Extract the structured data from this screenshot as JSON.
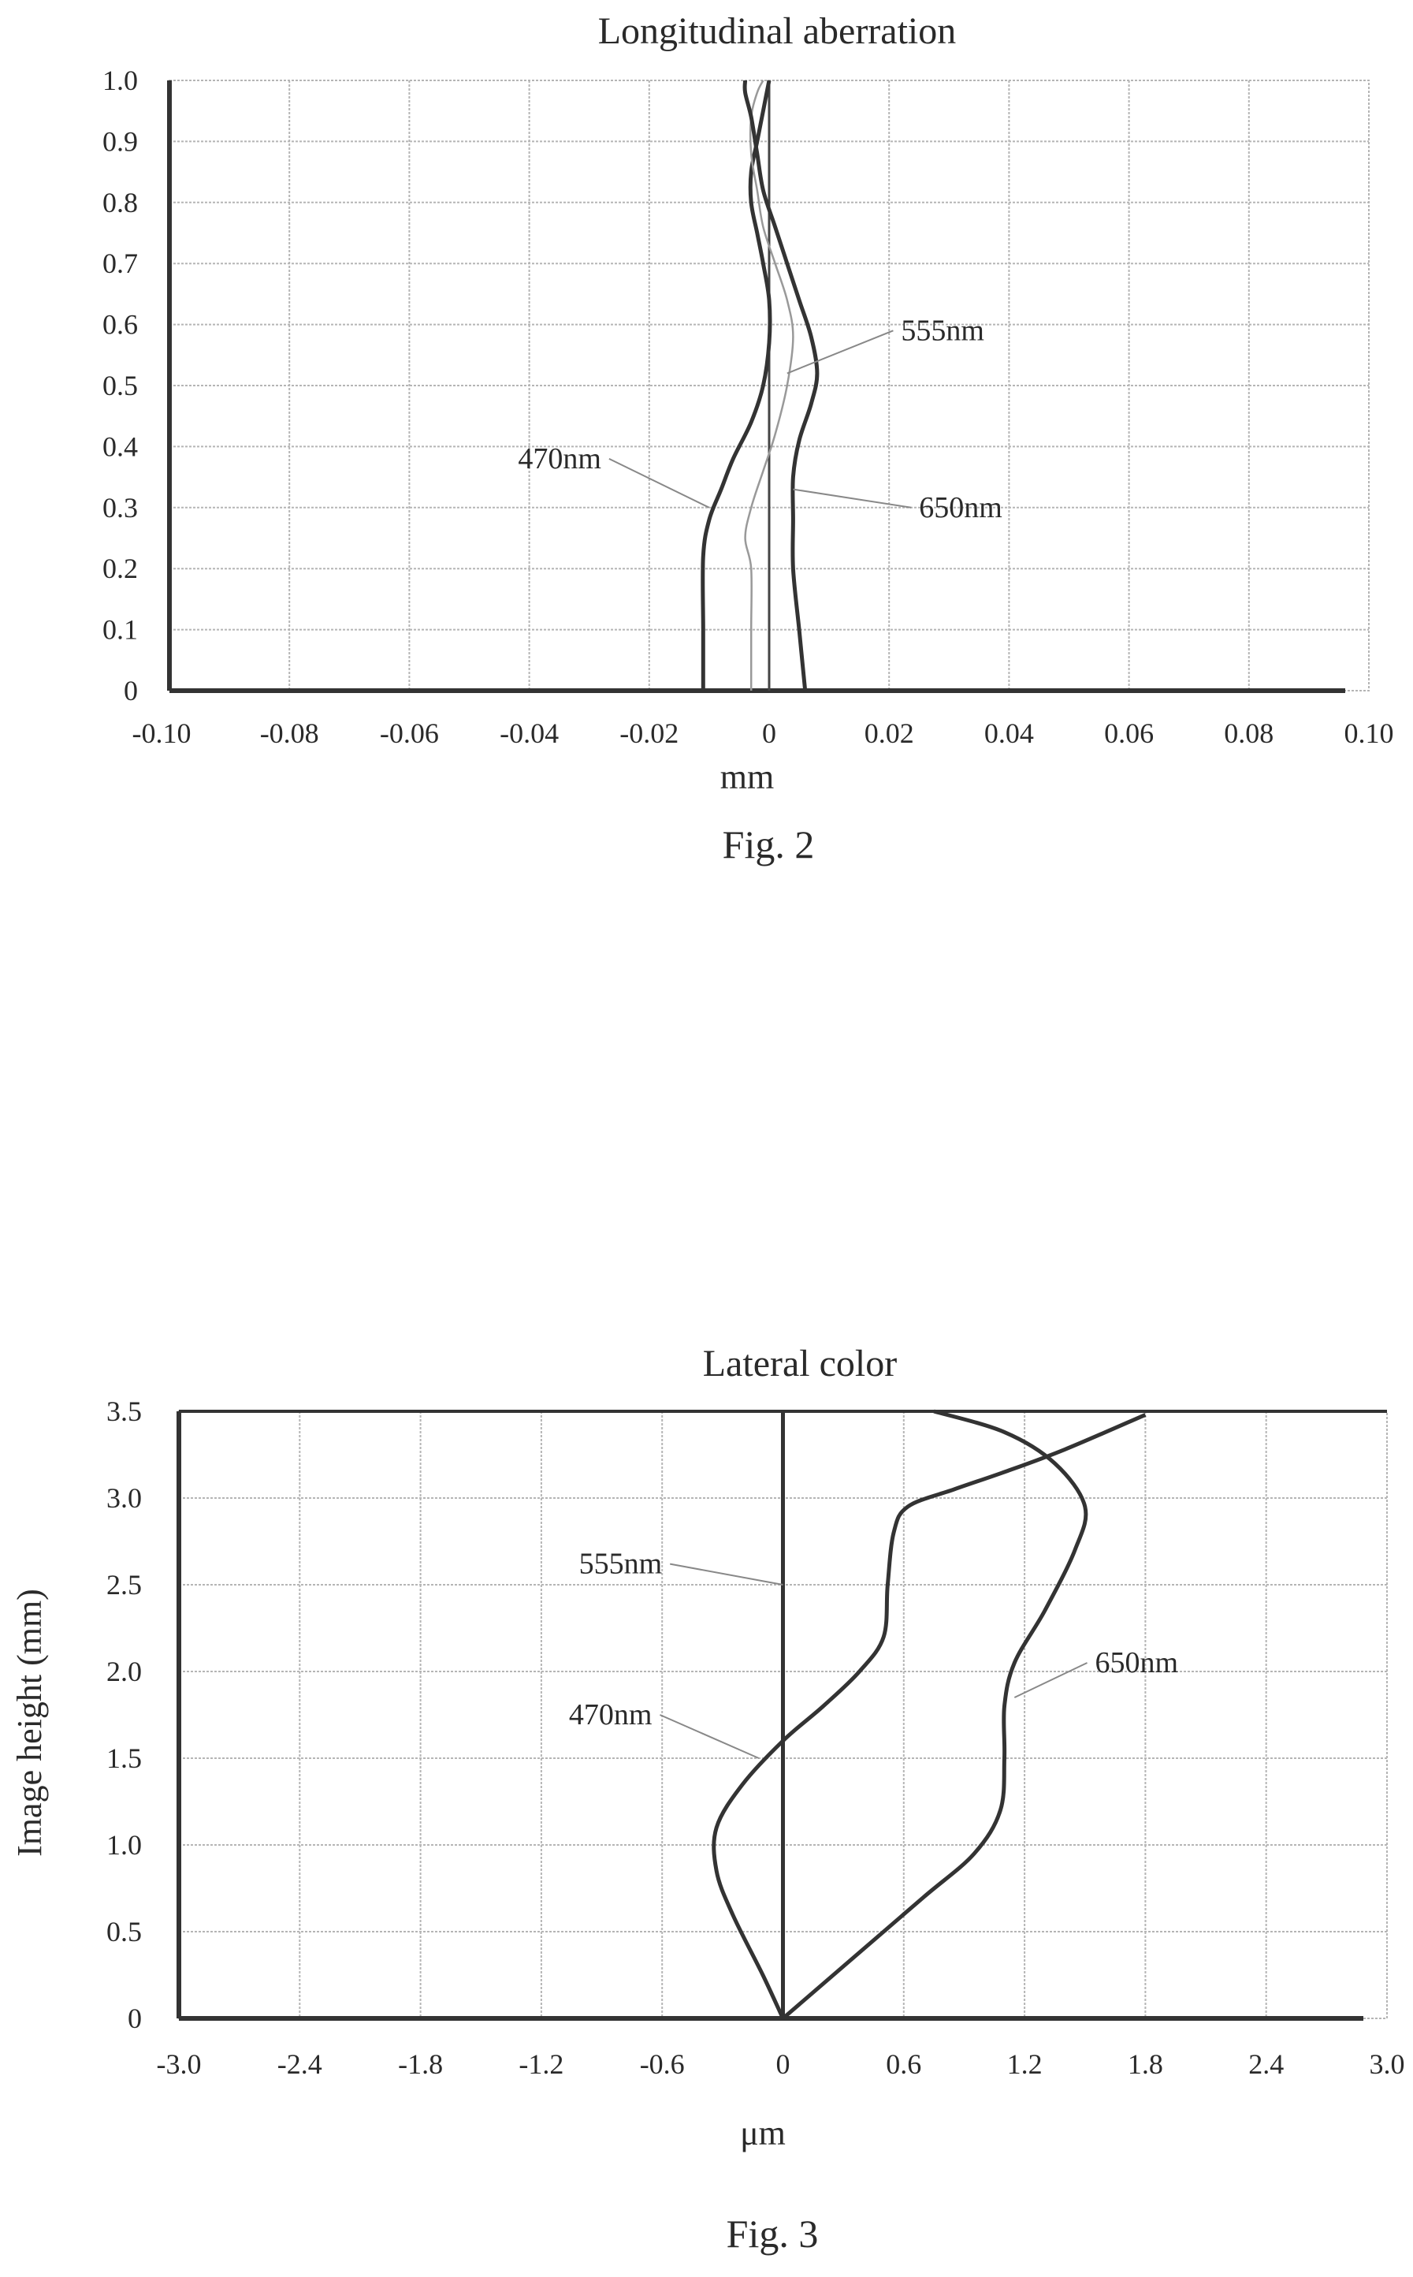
{
  "chart_data": [
    {
      "type": "line",
      "title": "Longitudinal aberration",
      "xlabel": "mm",
      "ylabel": "",
      "xlim": [
        -0.1,
        0.1
      ],
      "ylim": [
        0,
        1.0
      ],
      "grid": true,
      "caption": "Fig. 2",
      "x_tick_labels": [
        "-0.10",
        "-0.08",
        "-0.06",
        "-0.04",
        "-0.02",
        "0",
        "0.02",
        "0.04",
        "0.06",
        "0.08",
        "0.10"
      ],
      "y_tick_labels": [
        "0",
        "0.1",
        "0.2",
        "0.3",
        "0.4",
        "0.5",
        "0.6",
        "0.7",
        "0.8",
        "0.9",
        "1.0"
      ],
      "series": [
        {
          "name": "470nm",
          "color": "#333333",
          "points": [
            [
              -0.011,
              0
            ],
            [
              -0.011,
              0.1
            ],
            [
              -0.011,
              0.22
            ],
            [
              -0.01,
              0.28
            ],
            [
              -0.008,
              0.33
            ],
            [
              -0.006,
              0.38
            ],
            [
              -0.003,
              0.44
            ],
            [
              -0.001,
              0.5
            ],
            [
              0.0,
              0.57
            ],
            [
              0.0,
              0.64
            ],
            [
              -0.001,
              0.7
            ],
            [
              -0.002,
              0.75
            ],
            [
              -0.003,
              0.8
            ],
            [
              -0.003,
              0.85
            ],
            [
              -0.002,
              0.9
            ],
            [
              -0.001,
              0.95
            ],
            [
              0.0,
              1.0
            ]
          ]
        },
        {
          "name": "555nm",
          "color": "#999999",
          "points": [
            [
              -0.003,
              0
            ],
            [
              -0.003,
              0.1
            ],
            [
              -0.003,
              0.2
            ],
            [
              -0.004,
              0.25
            ],
            [
              -0.003,
              0.3
            ],
            [
              -0.001,
              0.36
            ],
            [
              0.001,
              0.42
            ],
            [
              0.003,
              0.5
            ],
            [
              0.004,
              0.58
            ],
            [
              0.003,
              0.64
            ],
            [
              0.001,
              0.7
            ],
            [
              -0.001,
              0.76
            ],
            [
              -0.002,
              0.82
            ],
            [
              -0.003,
              0.88
            ],
            [
              -0.003,
              0.94
            ],
            [
              -0.002,
              0.98
            ],
            [
              -0.001,
              1.0
            ]
          ]
        },
        {
          "name": "650nm",
          "color": "#333333",
          "points": [
            [
              0.006,
              0
            ],
            [
              0.005,
              0.1
            ],
            [
              0.004,
              0.2
            ],
            [
              0.004,
              0.28
            ],
            [
              0.004,
              0.35
            ],
            [
              0.005,
              0.41
            ],
            [
              0.007,
              0.47
            ],
            [
              0.008,
              0.52
            ],
            [
              0.007,
              0.58
            ],
            [
              0.005,
              0.64
            ],
            [
              0.003,
              0.7
            ],
            [
              0.001,
              0.76
            ],
            [
              -0.001,
              0.82
            ],
            [
              -0.002,
              0.88
            ],
            [
              -0.003,
              0.94
            ],
            [
              -0.004,
              0.98
            ],
            [
              -0.004,
              1.0
            ]
          ]
        }
      ],
      "annotations": [
        {
          "text": "555nm",
          "target": [
            0.003,
            0.52
          ],
          "anchor": [
            0.022,
            0.59
          ]
        },
        {
          "text": "470nm",
          "target": [
            -0.01,
            0.3
          ],
          "anchor": [
            -0.028,
            0.38
          ]
        },
        {
          "text": "650nm",
          "target": [
            0.004,
            0.33
          ],
          "anchor": [
            0.025,
            0.3
          ]
        }
      ],
      "reference_line_x": 0
    },
    {
      "type": "line",
      "title": "Lateral color",
      "xlabel": "μm",
      "ylabel": "Image height (mm)",
      "xlim": [
        -3.0,
        3.0
      ],
      "ylim": [
        0,
        3.5
      ],
      "grid": true,
      "caption": "Fig. 3",
      "x_tick_labels": [
        "-3.0",
        "-2.4",
        "-1.8",
        "-1.2",
        "-0.6",
        "0",
        "0.6",
        "1.2",
        "1.8",
        "2.4",
        "3.0"
      ],
      "y_tick_labels": [
        "0",
        "0.5",
        "1.0",
        "1.5",
        "2.0",
        "2.5",
        "3.0",
        "3.5"
      ],
      "series": [
        {
          "name": "470nm",
          "color": "#333333",
          "points": [
            [
              0.0,
              0.0
            ],
            [
              -0.1,
              0.25
            ],
            [
              -0.25,
              0.6
            ],
            [
              -0.33,
              0.85
            ],
            [
              -0.33,
              1.1
            ],
            [
              -0.2,
              1.35
            ],
            [
              0.0,
              1.6
            ],
            [
              0.2,
              1.8
            ],
            [
              0.38,
              2.0
            ],
            [
              0.5,
              2.2
            ],
            [
              0.52,
              2.5
            ],
            [
              0.55,
              2.8
            ],
            [
              0.62,
              2.95
            ],
            [
              0.85,
              3.05
            ],
            [
              1.1,
              3.15
            ],
            [
              1.4,
              3.28
            ],
            [
              1.8,
              3.48
            ]
          ]
        },
        {
          "name": "555nm",
          "color": "#333333",
          "points": [
            [
              0.0,
              0.0
            ],
            [
              0.0,
              3.5
            ]
          ]
        },
        {
          "name": "650nm",
          "color": "#333333",
          "points": [
            [
              0.0,
              0.0
            ],
            [
              0.35,
              0.35
            ],
            [
              0.7,
              0.7
            ],
            [
              0.95,
              0.95
            ],
            [
              1.08,
              1.2
            ],
            [
              1.1,
              1.5
            ],
            [
              1.1,
              1.8
            ],
            [
              1.15,
              2.05
            ],
            [
              1.3,
              2.35
            ],
            [
              1.45,
              2.7
            ],
            [
              1.5,
              2.95
            ],
            [
              1.35,
              3.2
            ],
            [
              1.1,
              3.38
            ],
            [
              0.75,
              3.5
            ]
          ]
        }
      ],
      "annotations": [
        {
          "text": "555nm",
          "target": [
            0.0,
            2.5
          ],
          "anchor": [
            -0.6,
            2.62
          ]
        },
        {
          "text": "470nm",
          "target": [
            -0.12,
            1.5
          ],
          "anchor": [
            -0.65,
            1.75
          ]
        },
        {
          "text": "650nm",
          "target": [
            1.15,
            1.85
          ],
          "anchor": [
            1.55,
            2.05
          ]
        }
      ]
    }
  ]
}
